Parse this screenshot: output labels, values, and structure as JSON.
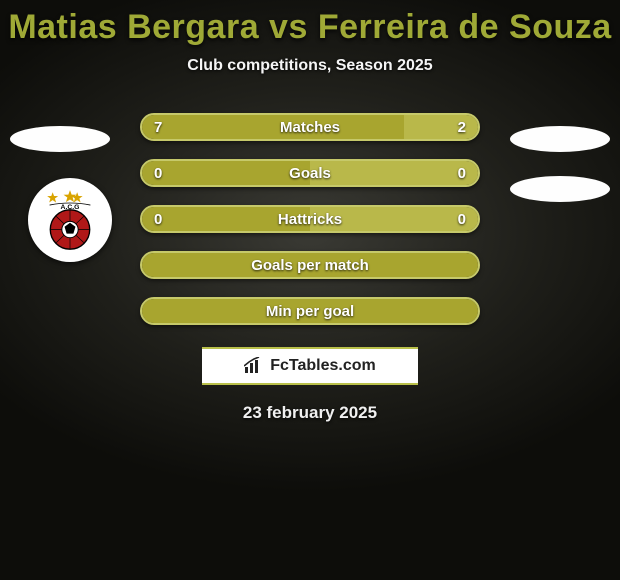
{
  "title": "Matias Bergara vs Ferreira de Souza",
  "subtitle": "Club competitions, Season 2025",
  "colors": {
    "accent": "#a8a52f",
    "accent_light": "#b9b84a",
    "border": "#c6c96a",
    "title": "#9fa936",
    "text": "#ffffff"
  },
  "bars": [
    {
      "label": "Matches",
      "left": "7",
      "right": "2",
      "left_pct": 78,
      "right_pct": 22,
      "show_values": true
    },
    {
      "label": "Goals",
      "left": "0",
      "right": "0",
      "left_pct": 50,
      "right_pct": 50,
      "show_values": true
    },
    {
      "label": "Hattricks",
      "left": "0",
      "right": "0",
      "left_pct": 50,
      "right_pct": 50,
      "show_values": true
    },
    {
      "label": "Goals per match",
      "left": "",
      "right": "",
      "left_pct": 100,
      "right_pct": 0,
      "show_values": false
    },
    {
      "label": "Min per goal",
      "left": "",
      "right": "",
      "left_pct": 100,
      "right_pct": 0,
      "show_values": false
    }
  ],
  "footer": {
    "brand_prefix": "Fc",
    "brand_suffix": "Tables.com"
  },
  "date": "23 february 2025",
  "club_logo": {
    "text_top": "A.C.G",
    "circle_fill": "#b01818",
    "circle_stroke": "#000000",
    "star_color": "#d9a400"
  }
}
